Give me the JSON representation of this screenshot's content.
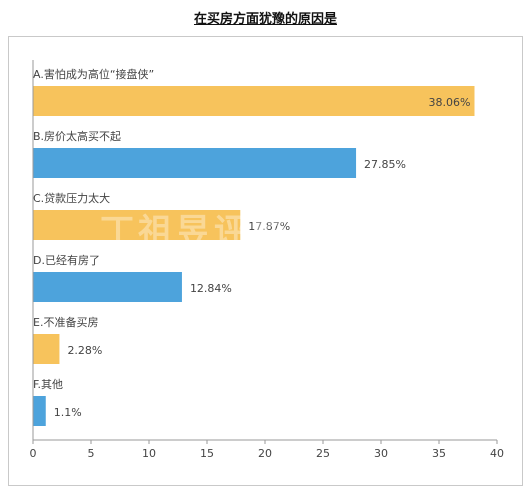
{
  "page": {
    "title": "在买房方面犹豫的原因是"
  },
  "watermark": "丁祖昱评楼市",
  "colors": {
    "yellow": "#F7C35C",
    "blue": "#4DA3DC",
    "axis": "#9a9a9a",
    "text": "#444444"
  },
  "chart_data": {
    "type": "bar",
    "orientation": "horizontal",
    "title": "在买房方面犹豫的原因是",
    "categories": [
      "A.害怕成为高位“接盘侠”",
      "B.房价太高买不起",
      "C.贷款压力太大",
      "D.已经有房了",
      "E.不准备买房",
      "F.其他"
    ],
    "values": [
      38.06,
      27.85,
      17.87,
      12.84,
      2.28,
      1.1
    ],
    "value_labels": [
      "38.06%",
      "27.85%",
      "17.87%",
      "12.84%",
      "2.28%",
      "1.1%"
    ],
    "bar_colors": [
      "#F7C35C",
      "#4DA3DC",
      "#F7C35C",
      "#4DA3DC",
      "#F7C35C",
      "#4DA3DC"
    ],
    "xlim": [
      0,
      40
    ],
    "xticks": [
      "0",
      "5",
      "10",
      "15",
      "20",
      "25",
      "30",
      "35",
      "40"
    ],
    "grid": false,
    "legend": "none"
  }
}
